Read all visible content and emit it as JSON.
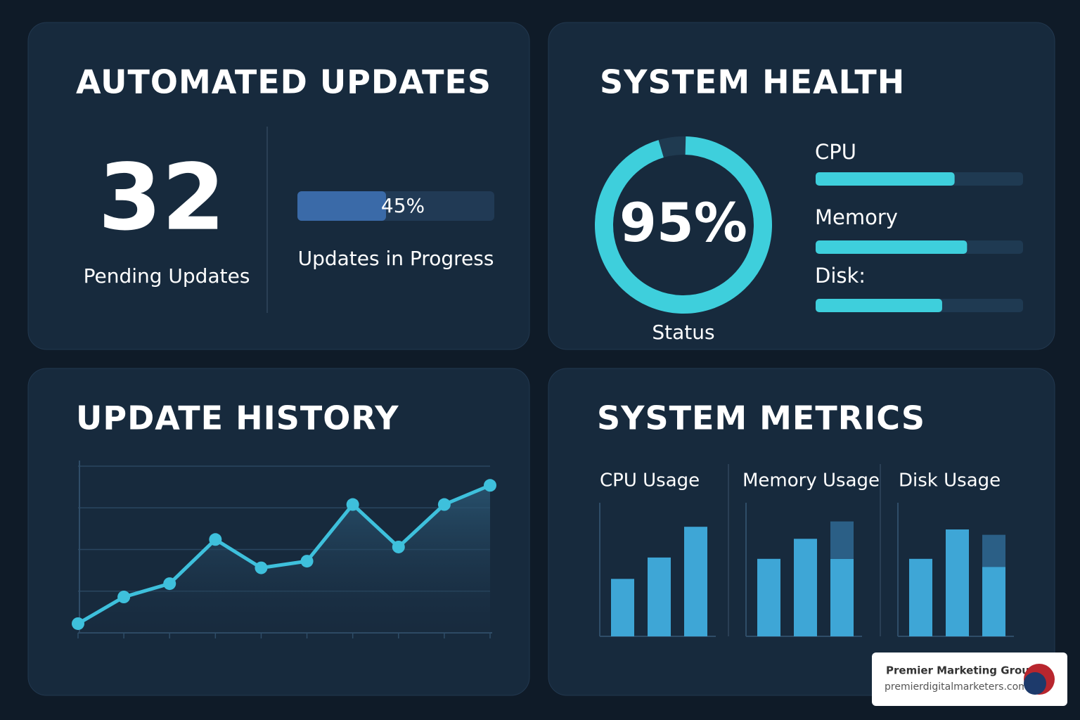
{
  "automated_updates": {
    "title": "AUTOMATED UPDATES",
    "pending_count": "32",
    "pending_label": "Pending Updates",
    "progress": {
      "value": 45,
      "label": "45%"
    },
    "progress_label": "Updates in Progress"
  },
  "system_health": {
    "title": "SYSTEM HEALTH",
    "status": {
      "value": 95,
      "label": "95%"
    },
    "status_label": "Status",
    "resources": [
      {
        "name": "CPU",
        "value": 67
      },
      {
        "name": "Memory",
        "value": 73
      },
      {
        "name": "Disk:",
        "value": 61
      }
    ]
  },
  "update_history": {
    "title": "UPDATE HISTORY",
    "type": "line",
    "color": "#3ec0dc",
    "values": [
      5.5,
      21.5,
      29.5,
      56,
      39,
      43,
      77,
      51.5,
      77,
      88.5
    ],
    "ylim": [
      0,
      100
    ],
    "yticks": [
      25,
      50,
      75,
      100
    ],
    "grid": true
  },
  "system_metrics": {
    "title": "SYSTEM METRICS",
    "type": "bar",
    "color": "#3ea6d6",
    "extra_color": "#2b5f86",
    "ylim": [
      0,
      100
    ],
    "groups": [
      {
        "name": "CPU Usage",
        "values": [
          43,
          59,
          82
        ],
        "extra": [
          null,
          null,
          null
        ]
      },
      {
        "name": "Memory Usage",
        "values": [
          58,
          73,
          58
        ],
        "extra": [
          null,
          null,
          28
        ]
      },
      {
        "name": "Disk Usage",
        "values": [
          58,
          80,
          52
        ],
        "extra": [
          null,
          null,
          24
        ]
      }
    ]
  },
  "watermark": {
    "name": "Premier Marketing Group",
    "url": "premierdigitalmarketers.com"
  }
}
